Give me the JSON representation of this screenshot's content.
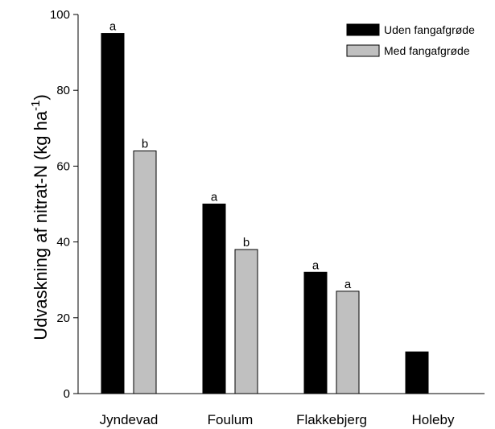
{
  "chart_data": {
    "type": "bar",
    "categories": [
      "Jyndevad",
      "Foulum",
      "Flakkebjerg",
      "Holeby"
    ],
    "series": [
      {
        "name": "Uden fangafgrøde",
        "color": "#000000",
        "values": [
          95,
          50,
          32,
          11
        ],
        "labels": [
          "a",
          "a",
          "a",
          ""
        ]
      },
      {
        "name": "Med fangafgrøde",
        "color": "#c0c0c0",
        "values": [
          64,
          38,
          27,
          null
        ],
        "labels": [
          "b",
          "b",
          "a",
          ""
        ]
      }
    ],
    "ylabel": "Udvaskning af nitrat-N (kg ha",
    "ylabel_superscript": "-1",
    "ylabel_suffix": ")",
    "ylim": [
      0,
      100
    ],
    "yticks": [
      0,
      20,
      40,
      60,
      80,
      100
    ],
    "legend_position": "top-right",
    "grid": false
  }
}
